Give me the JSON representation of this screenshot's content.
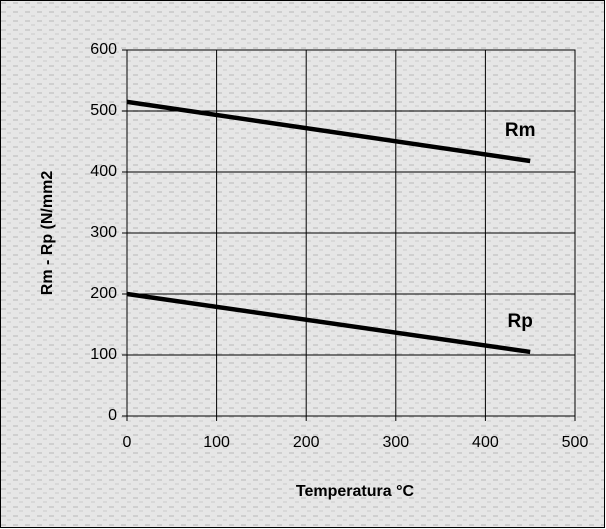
{
  "chart_data": {
    "type": "line",
    "x_label": "Temperatura °C",
    "y_label": "Rm - Rp (N/mm2",
    "x": [
      0,
      450
    ],
    "series": [
      {
        "name": "Rm",
        "color": "#000000",
        "values": [
          515,
          418
        ]
      },
      {
        "name": "Rp",
        "color": "#000000",
        "values": [
          200,
          105
        ]
      }
    ],
    "xlim": [
      0,
      500
    ],
    "xticks": [
      0,
      100,
      200,
      300,
      400,
      500
    ],
    "ylim": [
      0,
      600
    ],
    "yticks": [
      0,
      100,
      200,
      300,
      400,
      500,
      600
    ],
    "grid": true
  }
}
